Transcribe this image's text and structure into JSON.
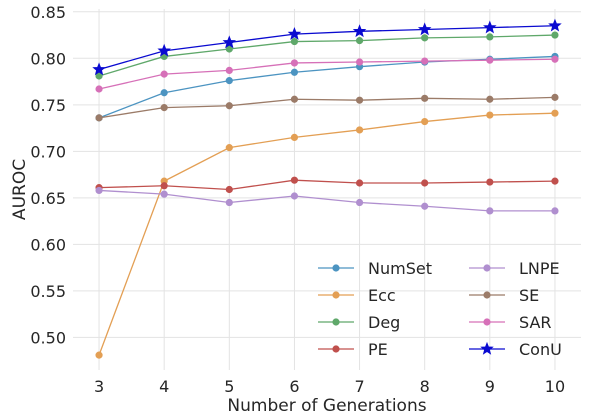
{
  "chart_data": {
    "type": "line",
    "xlabel": "Number of Generations",
    "ylabel": "AUROC",
    "x": [
      3,
      4,
      5,
      6,
      7,
      8,
      9,
      10
    ],
    "xlim": [
      2.6,
      10.4
    ],
    "ylim": [
      0.465,
      0.853
    ],
    "xticks": [
      "3",
      "4",
      "5",
      "6",
      "7",
      "8",
      "9",
      "10"
    ],
    "yticks": [
      "0.50",
      "0.55",
      "0.60",
      "0.65",
      "0.70",
      "0.75",
      "0.80",
      "0.85"
    ],
    "ytick_values": [
      0.5,
      0.55,
      0.6,
      0.65,
      0.7,
      0.75,
      0.8,
      0.85
    ],
    "grid": true,
    "legend": {
      "position": "bottom-right",
      "columns": 2
    },
    "series": [
      {
        "name": "NumSet",
        "color": "#4c94c1",
        "marker": "circle",
        "values": [
          0.736,
          0.763,
          0.776,
          0.785,
          0.791,
          0.796,
          0.799,
          0.802
        ]
      },
      {
        "name": "Ecc",
        "color": "#e39f54",
        "marker": "circle",
        "values": [
          0.481,
          0.668,
          0.704,
          0.715,
          0.723,
          0.732,
          0.739,
          0.741
        ]
      },
      {
        "name": "Deg",
        "color": "#5fa86a",
        "marker": "circle",
        "values": [
          0.781,
          0.802,
          0.81,
          0.818,
          0.819,
          0.822,
          0.823,
          0.825
        ]
      },
      {
        "name": "PE",
        "color": "#c0504d",
        "marker": "circle",
        "values": [
          0.661,
          0.663,
          0.659,
          0.669,
          0.666,
          0.666,
          0.667,
          0.668
        ]
      },
      {
        "name": "LNPE",
        "color": "#b08fcf",
        "marker": "circle",
        "values": [
          0.658,
          0.654,
          0.645,
          0.652,
          0.645,
          0.641,
          0.636,
          0.636
        ]
      },
      {
        "name": "SE",
        "color": "#9b7b68",
        "marker": "circle",
        "values": [
          0.736,
          0.747,
          0.749,
          0.756,
          0.755,
          0.757,
          0.756,
          0.758
        ]
      },
      {
        "name": "SAR",
        "color": "#d670b8",
        "marker": "circle",
        "values": [
          0.767,
          0.783,
          0.787,
          0.795,
          0.796,
          0.797,
          0.798,
          0.799
        ]
      },
      {
        "name": "ConU",
        "color": "#0a0ad0",
        "marker": "star",
        "values": [
          0.788,
          0.808,
          0.817,
          0.826,
          0.829,
          0.831,
          0.833,
          0.835
        ]
      }
    ]
  }
}
